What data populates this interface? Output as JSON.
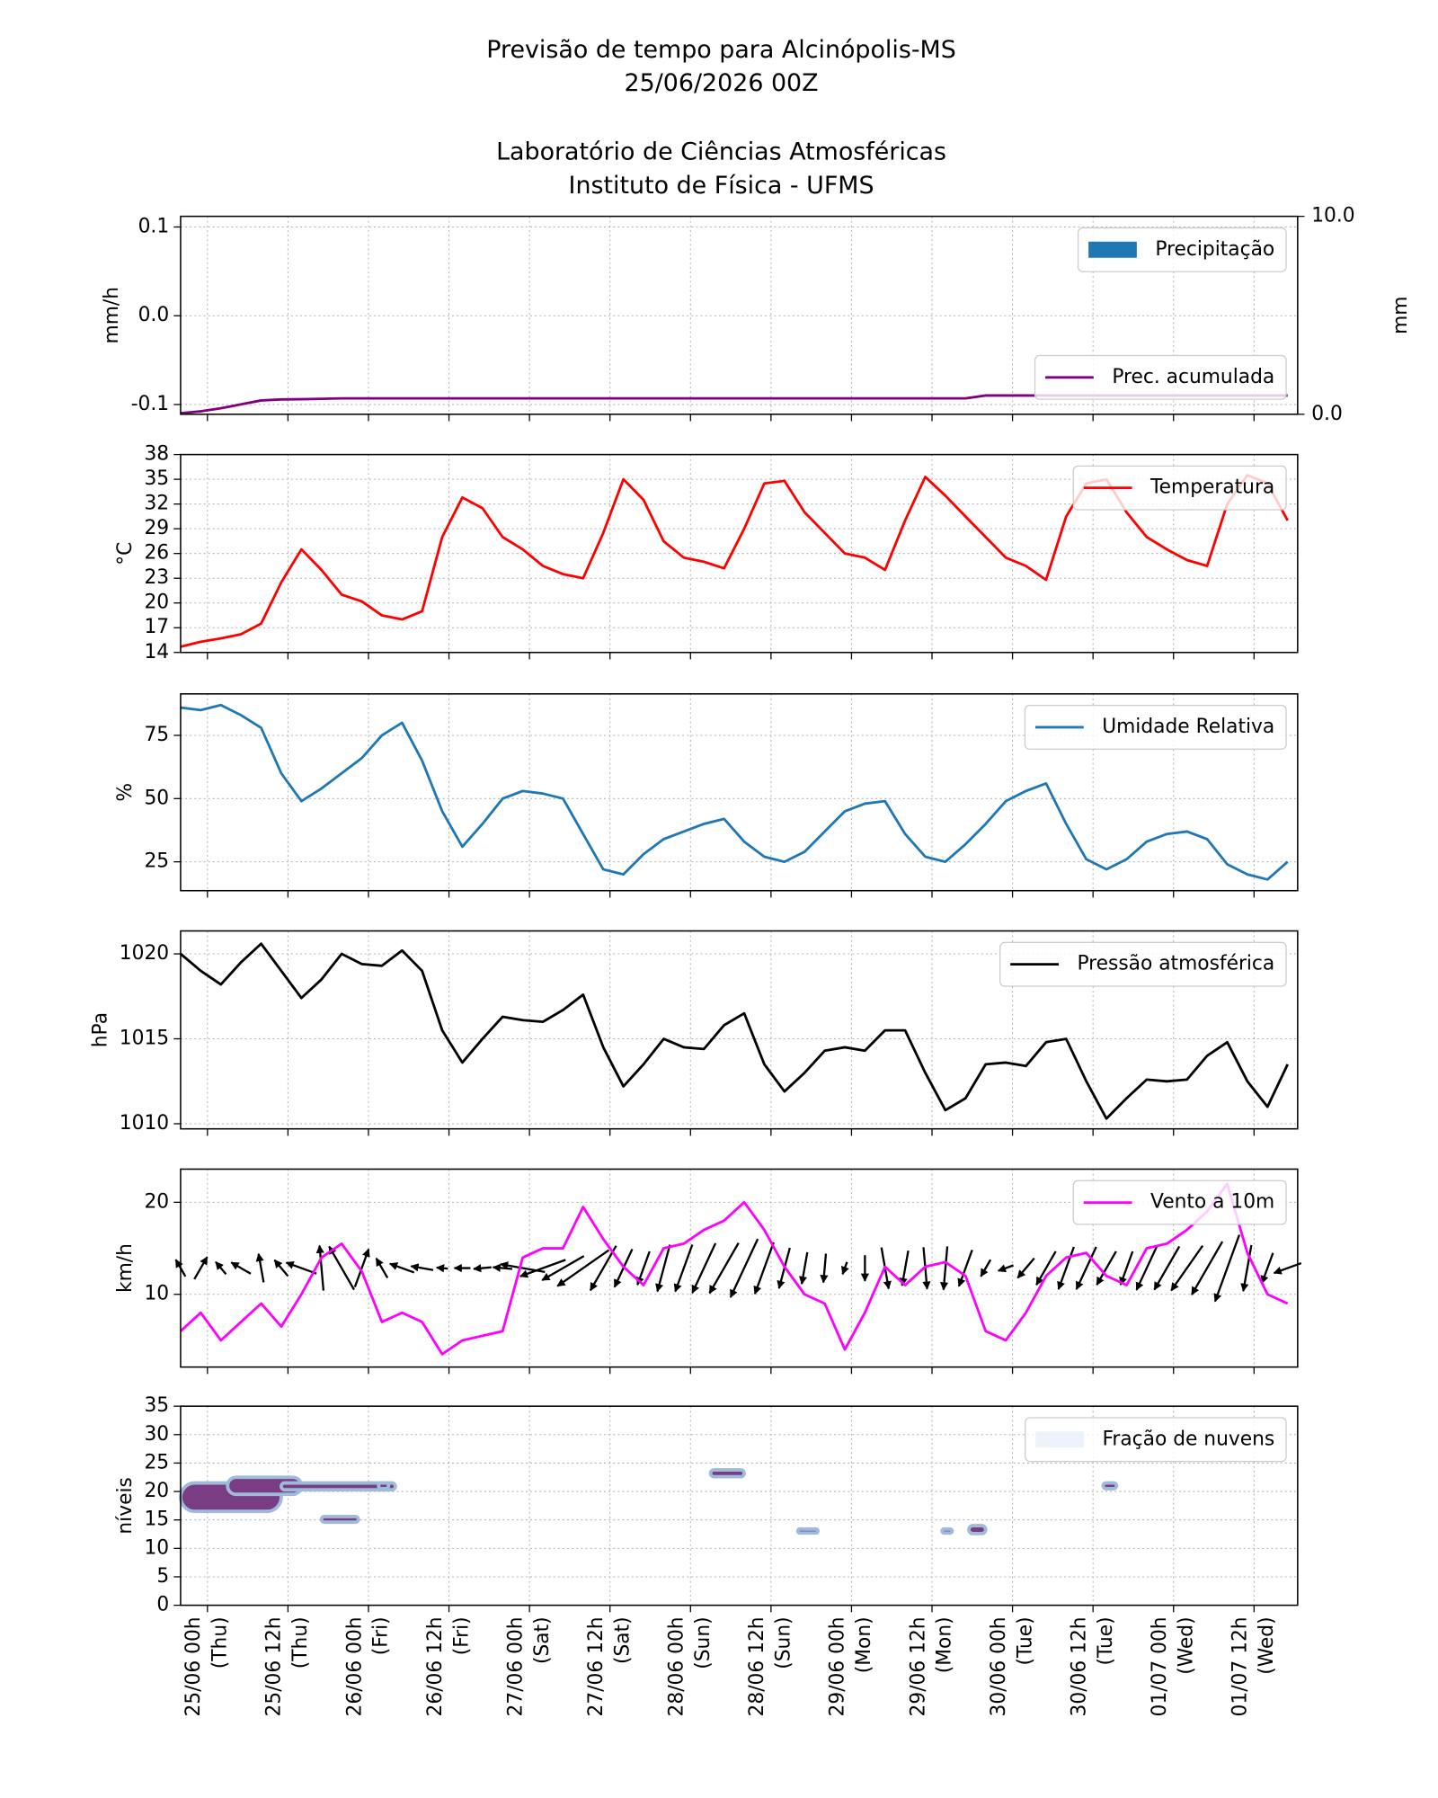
{
  "header": {
    "title": "Previsão de tempo para Alcinópolis-MS",
    "subtitle": "25/06/2026 00Z",
    "institution": "Laboratório de Ciências Atmosféricas",
    "department": "Instituto de Física - UFMS"
  },
  "chart_data": [
    {
      "type": "combo",
      "ylabel": "mm/h",
      "y2label": "mm",
      "grid": true,
      "xlim": [
        -4,
        162.5
      ],
      "xticks": [
        0,
        12,
        24,
        36,
        48,
        60,
        72,
        84,
        96,
        108,
        120,
        132,
        144,
        156
      ],
      "ylim": [
        -0.111,
        0.112
      ],
      "yticks": [
        0.1,
        {
          "value": 0,
          "label": "0.0"
        },
        -0.1
      ],
      "y2lim": [
        0,
        10
      ],
      "y2ticks": [
        {
          "value": 10,
          "label": "10.0"
        },
        {
          "value": 0,
          "label": "0.0"
        }
      ],
      "x": [
        -4,
        -1,
        2,
        5,
        8,
        11,
        14,
        17,
        20,
        23,
        26,
        29,
        32,
        35,
        38,
        41,
        44,
        47,
        50,
        53,
        56,
        59,
        62,
        65,
        68,
        71,
        74,
        77,
        80,
        83,
        86,
        89,
        92,
        95,
        98,
        101,
        104,
        107,
        110,
        113,
        116,
        119,
        122,
        125,
        128,
        131,
        134,
        137,
        140,
        143,
        146,
        149,
        152,
        155,
        158,
        161
      ],
      "series": [
        {
          "name": "Precipitação",
          "type": "bar",
          "color": "#1f77b4",
          "legend": "upper right",
          "values": [
            0,
            0,
            0,
            0,
            0,
            0,
            0,
            0,
            0,
            0,
            0,
            0,
            0,
            0,
            0,
            0,
            0,
            0,
            0,
            0,
            0,
            0,
            0,
            0,
            0,
            0,
            0,
            0,
            0,
            0,
            0,
            0,
            0,
            0,
            0,
            0,
            0,
            0,
            0,
            0,
            0,
            0,
            0,
            0,
            0,
            0,
            0,
            0,
            0,
            0,
            0,
            0,
            0,
            0,
            0,
            0
          ]
        },
        {
          "name": "Prec. acumulada",
          "type": "line",
          "axis": "y2",
          "color": "#800080",
          "legend": "lower right",
          "values": [
            0.05,
            0.15,
            0.3,
            0.5,
            0.7,
            0.75,
            0.76,
            0.78,
            0.8,
            0.8,
            0.8,
            0.8,
            0.8,
            0.8,
            0.8,
            0.8,
            0.8,
            0.8,
            0.8,
            0.8,
            0.8,
            0.8,
            0.8,
            0.8,
            0.8,
            0.8,
            0.8,
            0.8,
            0.8,
            0.8,
            0.8,
            0.8,
            0.8,
            0.8,
            0.8,
            0.8,
            0.8,
            0.8,
            0.8,
            0.8,
            0.95,
            0.95,
            0.95,
            0.95,
            0.95,
            0.95,
            0.95,
            0.95,
            0.95,
            0.95,
            0.95,
            0.95,
            0.95,
            0.95,
            0.95,
            0.95
          ]
        }
      ]
    },
    {
      "type": "line",
      "ylabel": "°C",
      "grid": true,
      "xlim": [
        -4,
        162.5
      ],
      "xticks": [
        0,
        12,
        24,
        36,
        48,
        60,
        72,
        84,
        96,
        108,
        120,
        132,
        144,
        156
      ],
      "ylim": [
        14,
        38
      ],
      "yticks": [
        14,
        17,
        20,
        23,
        26,
        29,
        32,
        35,
        38
      ],
      "x": [
        -4,
        -1,
        2,
        5,
        8,
        11,
        14,
        17,
        20,
        23,
        26,
        29,
        32,
        35,
        38,
        41,
        44,
        47,
        50,
        53,
        56,
        59,
        62,
        65,
        68,
        71,
        74,
        77,
        80,
        83,
        86,
        89,
        92,
        95,
        98,
        101,
        104,
        107,
        110,
        113,
        116,
        119,
        122,
        125,
        128,
        131,
        134,
        137,
        140,
        143,
        146,
        149,
        152,
        155,
        158,
        161
      ],
      "series": [
        {
          "name": "Temperatura",
          "type": "line",
          "color": "#ff0000",
          "legend": "upper right",
          "values": [
            14.7,
            15.3,
            15.7,
            16.2,
            17.5,
            22.5,
            26.5,
            24,
            21,
            20.2,
            18.5,
            18,
            19,
            28,
            32.8,
            31.5,
            28,
            26.5,
            24.5,
            23.5,
            23,
            28.5,
            35,
            32.5,
            27.5,
            25.5,
            25,
            24.2,
            29,
            34.5,
            34.8,
            31,
            28.5,
            26,
            25.5,
            24,
            30,
            35.3,
            33,
            30.5,
            28,
            25.5,
            24.5,
            22.8,
            30.5,
            34.5,
            35,
            31,
            28,
            26.5,
            25.2,
            24.5,
            32,
            35.5,
            34.5,
            30
          ]
        }
      ]
    },
    {
      "type": "line",
      "ylabel": "%",
      "grid": true,
      "xlim": [
        -4,
        162.5
      ],
      "xticks": [
        0,
        12,
        24,
        36,
        48,
        60,
        72,
        84,
        96,
        108,
        120,
        132,
        144,
        156
      ],
      "ylim": [
        13.6,
        91.4
      ],
      "yticks": [
        25,
        50,
        75
      ],
      "x": [
        -4,
        -1,
        2,
        5,
        8,
        11,
        14,
        17,
        20,
        23,
        26,
        29,
        32,
        35,
        38,
        41,
        44,
        47,
        50,
        53,
        56,
        59,
        62,
        65,
        68,
        71,
        74,
        77,
        80,
        83,
        86,
        89,
        92,
        95,
        98,
        101,
        104,
        107,
        110,
        113,
        116,
        119,
        122,
        125,
        128,
        131,
        134,
        137,
        140,
        143,
        146,
        149,
        152,
        155,
        158,
        161
      ],
      "series": [
        {
          "name": "Umidade Relativa",
          "type": "line",
          "color": "#1f77b4",
          "legend": "upper right",
          "values": [
            86,
            85,
            87,
            83,
            78,
            60,
            49,
            54,
            60,
            66,
            75,
            80,
            65,
            45,
            31,
            40,
            50,
            53,
            52,
            50,
            36,
            22,
            20,
            28,
            34,
            37,
            40,
            42,
            33,
            27,
            25,
            29,
            37,
            45,
            48,
            49,
            36,
            27,
            25,
            32,
            40,
            49,
            53,
            56,
            40,
            26,
            22,
            26,
            33,
            36,
            37,
            34,
            24,
            20,
            18,
            25
          ]
        }
      ]
    },
    {
      "type": "line",
      "ylabel": "hPa",
      "grid": true,
      "xlim": [
        -4,
        162.5
      ],
      "xticks": [
        0,
        12,
        24,
        36,
        48,
        60,
        72,
        84,
        96,
        108,
        120,
        132,
        144,
        156
      ],
      "ylim": [
        1009.7,
        1021.35
      ],
      "yticks": [
        1010,
        1015,
        1020
      ],
      "x": [
        -4,
        -1,
        2,
        5,
        8,
        11,
        14,
        17,
        20,
        23,
        26,
        29,
        32,
        35,
        38,
        41,
        44,
        47,
        50,
        53,
        56,
        59,
        62,
        65,
        68,
        71,
        74,
        77,
        80,
        83,
        86,
        89,
        92,
        95,
        98,
        101,
        104,
        107,
        110,
        113,
        116,
        119,
        122,
        125,
        128,
        131,
        134,
        137,
        140,
        143,
        146,
        149,
        152,
        155,
        158,
        161
      ],
      "series": [
        {
          "name": "Pressão atmosférica",
          "type": "line",
          "color": "#000000",
          "legend": "upper right",
          "values": [
            1020,
            1019,
            1018.2,
            1019.5,
            1020.6,
            1019,
            1017.4,
            1018.5,
            1020,
            1019.4,
            1019.3,
            1020.2,
            1019,
            1015.5,
            1013.6,
            1015,
            1016.3,
            1016.1,
            1016,
            1016.7,
            1017.6,
            1014.5,
            1012.2,
            1013.5,
            1015,
            1014.5,
            1014.4,
            1015.8,
            1016.5,
            1013.5,
            1011.9,
            1013,
            1014.3,
            1014.5,
            1014.3,
            1015.5,
            1015.5,
            1013,
            1010.8,
            1011.5,
            1013.5,
            1013.6,
            1013.4,
            1014.8,
            1015,
            1012.5,
            1010.3,
            1011.5,
            1012.6,
            1012.5,
            1012.6,
            1014,
            1014.8,
            1012.5,
            1011,
            1013.5
          ]
        }
      ]
    },
    {
      "type": "wind",
      "ylabel": "km/h",
      "grid": true,
      "xlim": [
        -4,
        162.5
      ],
      "xticks": [
        0,
        12,
        24,
        36,
        48,
        60,
        72,
        84,
        96,
        108,
        120,
        132,
        144,
        156
      ],
      "ylim": [
        2.1,
        23.6
      ],
      "yticks": [
        10,
        20
      ],
      "x": [
        -4,
        -1,
        2,
        5,
        8,
        11,
        14,
        17,
        20,
        23,
        26,
        29,
        32,
        35,
        38,
        41,
        44,
        47,
        50,
        53,
        56,
        59,
        62,
        65,
        68,
        71,
        74,
        77,
        80,
        83,
        86,
        89,
        92,
        95,
        98,
        101,
        104,
        107,
        110,
        113,
        116,
        119,
        122,
        125,
        128,
        131,
        134,
        137,
        140,
        143,
        146,
        149,
        152,
        155,
        158,
        161
      ],
      "arrow_color": "#000000",
      "series": [
        {
          "name": "Vento a 10m",
          "type": "line",
          "color": "#ff00ff",
          "legend": "upper right",
          "values": [
            6,
            8,
            5,
            7,
            9,
            6.5,
            10,
            14,
            15.5,
            12.5,
            7,
            8,
            7,
            3.5,
            5,
            5.5,
            6,
            14,
            15,
            15,
            19.5,
            16,
            13,
            11,
            15,
            15.5,
            17,
            18,
            20,
            17,
            13,
            10,
            9,
            4,
            8,
            13,
            11,
            13,
            13.5,
            12,
            6,
            5,
            8,
            12,
            14,
            14.5,
            12,
            11,
            15,
            15.5,
            17,
            19,
            22,
            14.5,
            10,
            9
          ],
          "arrow_angle": [
            120,
            60,
            130,
            150,
            100,
            130,
            160,
            95,
            120,
            70,
            120,
            160,
            170,
            175,
            180,
            185,
            175,
            170,
            200,
            210,
            215,
            240,
            245,
            250,
            255,
            250,
            245,
            240,
            245,
            250,
            255,
            260,
            265,
            250,
            270,
            280,
            260,
            275,
            265,
            250,
            240,
            200,
            230,
            240,
            250,
            245,
            240,
            250,
            245,
            240,
            235,
            240,
            250,
            260,
            250,
            200
          ]
        }
      ]
    },
    {
      "type": "contour",
      "ylabel": "níveis",
      "grid": true,
      "xlim": [
        -4,
        162.5
      ],
      "xticks": [
        {
          "value": 0,
          "label": "25/06 00h\n(Thu)"
        },
        {
          "value": 12,
          "label": "25/06 12h\n(Thu)"
        },
        {
          "value": 24,
          "label": "26/06 00h\n(Fri)"
        },
        {
          "value": 36,
          "label": "26/06 12h\n(Fri)"
        },
        {
          "value": 48,
          "label": "27/06 00h\n(Sat)"
        },
        {
          "value": 60,
          "label": "27/06 12h\n(Sat)"
        },
        {
          "value": 72,
          "label": "28/06 00h\n(Sun)"
        },
        {
          "value": 84,
          "label": "28/06 12h\n(Sun)"
        },
        {
          "value": 96,
          "label": "29/06 00h\n(Mon)"
        },
        {
          "value": 108,
          "label": "29/06 12h\n(Mon)"
        },
        {
          "value": 120,
          "label": "30/06 00h\n(Tue)"
        },
        {
          "value": 132,
          "label": "30/06 12h\n(Tue)"
        },
        {
          "value": 144,
          "label": "01/07 00h\n(Wed)"
        },
        {
          "value": 156,
          "label": "01/07 12h\n(Wed)"
        }
      ],
      "ylim": [
        0,
        35
      ],
      "yticks": [
        0,
        5,
        10,
        15,
        20,
        25,
        30,
        35
      ],
      "series": [
        {
          "name": "Fração de nuvens",
          "type": "contour",
          "colors": [
            "#edf3fa",
            "#9ebcda",
            "#7a3d84"
          ],
          "legend": "upper right"
        }
      ],
      "clouds": [
        {
          "x": [
            -4,
            11
          ],
          "levels": [
            16.5,
            21.5
          ]
        },
        {
          "x": [
            3,
            14
          ],
          "levels": [
            19.5,
            22.5
          ]
        },
        {
          "x": [
            11,
            28
          ],
          "levels": [
            20.3,
            21.5
          ]
        },
        {
          "x": [
            17,
            22.5
          ],
          "levels": [
            14.6,
            15.6
          ]
        },
        {
          "x": [
            25.5,
            27
          ],
          "levels": [
            20.5,
            21.5
          ]
        },
        {
          "x": [
            75,
            80
          ],
          "levels": [
            22.6,
            23.8
          ]
        },
        {
          "x": [
            133.5,
            135.5
          ],
          "levels": [
            20.5,
            21.5
          ]
        },
        {
          "x": [
            88,
            91
          ],
          "levels": [
            12.7,
            13.4
          ]
        },
        {
          "x": [
            109.5,
            111
          ],
          "levels": [
            12.7,
            13.4
          ]
        },
        {
          "x": [
            113.5,
            116
          ],
          "levels": [
            12.6,
            14
          ]
        }
      ]
    }
  ]
}
